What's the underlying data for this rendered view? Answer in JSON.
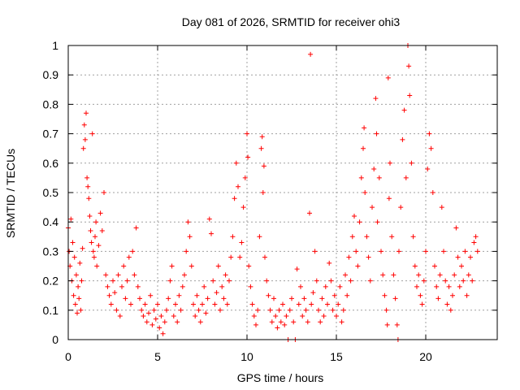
{
  "chart_data": {
    "type": "scatter",
    "title": "Day 081 of 2026, SRMTID for receiver ohi3",
    "xlabel": "GPS time / hours",
    "ylabel": "SRMTID / TECUs",
    "xlim": [
      0,
      24
    ],
    "ylim": [
      0,
      1
    ],
    "xticks": [
      0,
      5,
      10,
      15,
      20
    ],
    "xtick_labels": [
      "0",
      "5",
      "10",
      "15",
      "20"
    ],
    "yticks": [
      0,
      0.1,
      0.2,
      0.3,
      0.4,
      0.5,
      0.6,
      0.7,
      0.8,
      0.9,
      1
    ],
    "ytick_labels": [
      "0",
      "0.1",
      "0.2",
      "0.3",
      "0.4",
      "0.5",
      "0.6",
      "0.7",
      "0.8",
      "0.9",
      "1"
    ],
    "grid": true,
    "marker": "plus",
    "color": "#ff0000",
    "series": [
      {
        "name": "SRMTID",
        "points": [
          [
            0.0,
            0.38
          ],
          [
            0.05,
            0.3
          ],
          [
            0.1,
            0.25
          ],
          [
            0.15,
            0.41
          ],
          [
            0.2,
            0.2
          ],
          [
            0.25,
            0.33
          ],
          [
            0.3,
            0.15
          ],
          [
            0.35,
            0.28
          ],
          [
            0.4,
            0.12
          ],
          [
            0.45,
            0.22
          ],
          [
            0.5,
            0.09
          ],
          [
            0.55,
            0.18
          ],
          [
            0.6,
            0.14
          ],
          [
            0.65,
            0.26
          ],
          [
            0.7,
            0.1
          ],
          [
            0.75,
            0.2
          ],
          [
            0.8,
            0.31
          ],
          [
            0.85,
            0.65
          ],
          [
            0.9,
            0.73
          ],
          [
            0.95,
            0.68
          ],
          [
            1.0,
            0.77
          ],
          [
            1.05,
            0.55
          ],
          [
            1.1,
            0.52
          ],
          [
            1.15,
            0.48
          ],
          [
            1.2,
            0.42
          ],
          [
            1.25,
            0.37
          ],
          [
            1.3,
            0.33
          ],
          [
            1.35,
            0.7
          ],
          [
            1.4,
            0.3
          ],
          [
            1.45,
            0.28
          ],
          [
            1.5,
            0.35
          ],
          [
            1.55,
            0.4
          ],
          [
            1.6,
            0.25
          ],
          [
            1.7,
            0.32
          ],
          [
            1.8,
            0.43
          ],
          [
            1.9,
            0.37
          ],
          [
            2.0,
            0.5
          ],
          [
            2.1,
            0.22
          ],
          [
            2.2,
            0.18
          ],
          [
            2.3,
            0.15
          ],
          [
            2.4,
            0.12
          ],
          [
            2.5,
            0.2
          ],
          [
            2.6,
            0.16
          ],
          [
            2.7,
            0.1
          ],
          [
            2.8,
            0.22
          ],
          [
            2.9,
            0.08
          ],
          [
            3.0,
            0.18
          ],
          [
            3.1,
            0.25
          ],
          [
            3.2,
            0.14
          ],
          [
            3.3,
            0.2
          ],
          [
            3.4,
            0.28
          ],
          [
            3.5,
            0.12
          ],
          [
            3.6,
            0.3
          ],
          [
            3.7,
            0.22
          ],
          [
            3.8,
            0.38
          ],
          [
            3.9,
            0.18
          ],
          [
            4.0,
            0.14
          ],
          [
            4.1,
            0.1
          ],
          [
            4.2,
            0.08
          ],
          [
            4.3,
            0.12
          ],
          [
            4.4,
            0.06
          ],
          [
            4.5,
            0.09
          ],
          [
            4.6,
            0.15
          ],
          [
            4.7,
            0.05
          ],
          [
            4.8,
            0.1
          ],
          [
            4.9,
            0.07
          ],
          [
            5.0,
            0.12
          ],
          [
            5.1,
            0.04
          ],
          [
            5.2,
            0.08
          ],
          [
            5.3,
            0.02
          ],
          [
            5.4,
            0.06
          ],
          [
            5.5,
            0.1
          ],
          [
            5.6,
            0.14
          ],
          [
            5.7,
            0.2
          ],
          [
            5.8,
            0.25
          ],
          [
            5.9,
            0.08
          ],
          [
            6.0,
            0.12
          ],
          [
            6.1,
            0.06
          ],
          [
            6.2,
            0.15
          ],
          [
            6.3,
            0.1
          ],
          [
            6.4,
            0.18
          ],
          [
            6.5,
            0.22
          ],
          [
            6.6,
            0.3
          ],
          [
            6.7,
            0.4
          ],
          [
            6.8,
            0.35
          ],
          [
            6.9,
            0.25
          ],
          [
            7.0,
            0.12
          ],
          [
            7.1,
            0.08
          ],
          [
            7.2,
            0.15
          ],
          [
            7.3,
            0.1
          ],
          [
            7.4,
            0.06
          ],
          [
            7.5,
            0.12
          ],
          [
            7.6,
            0.18
          ],
          [
            7.7,
            0.09
          ],
          [
            7.8,
            0.14
          ],
          [
            7.9,
            0.41
          ],
          [
            8.0,
            0.36
          ],
          [
            8.1,
            0.2
          ],
          [
            8.2,
            0.12
          ],
          [
            8.3,
            0.16
          ],
          [
            8.4,
            0.25
          ],
          [
            8.5,
            0.1
          ],
          [
            8.6,
            0.18
          ],
          [
            8.7,
            0.14
          ],
          [
            8.8,
            0.22
          ],
          [
            8.9,
            0.12
          ],
          [
            9.0,
            0.2
          ],
          [
            9.1,
            0.28
          ],
          [
            9.2,
            0.35
          ],
          [
            9.3,
            0.48
          ],
          [
            9.4,
            0.6
          ],
          [
            9.5,
            0.52
          ],
          [
            9.6,
            0.28
          ],
          [
            9.7,
            0.33
          ],
          [
            9.8,
            0.45
          ],
          [
            9.9,
            0.55
          ],
          [
            10.0,
            0.7
          ],
          [
            10.05,
            0.62
          ],
          [
            10.1,
            0.25
          ],
          [
            10.2,
            0.18
          ],
          [
            10.3,
            0.12
          ],
          [
            10.4,
            0.08
          ],
          [
            10.5,
            0.05
          ],
          [
            10.6,
            0.1
          ],
          [
            10.7,
            0.35
          ],
          [
            10.8,
            0.65
          ],
          [
            10.85,
            0.69
          ],
          [
            10.9,
            0.5
          ],
          [
            10.95,
            0.59
          ],
          [
            11.0,
            0.28
          ],
          [
            11.1,
            0.2
          ],
          [
            11.2,
            0.15
          ],
          [
            11.3,
            0.1
          ],
          [
            11.4,
            0.06
          ],
          [
            11.5,
            0.14
          ],
          [
            11.6,
            0.08
          ],
          [
            11.7,
            0.04
          ],
          [
            11.8,
            0.1
          ],
          [
            11.9,
            0.06
          ],
          [
            12.0,
            0.12
          ],
          [
            12.1,
            0.05
          ],
          [
            12.2,
            0.08
          ],
          [
            12.3,
            0.0
          ],
          [
            12.4,
            0.1
          ],
          [
            12.5,
            0.14
          ],
          [
            12.6,
            0.06
          ],
          [
            12.7,
            0.0
          ],
          [
            12.8,
            0.24
          ],
          [
            12.9,
            0.12
          ],
          [
            13.0,
            0.18
          ],
          [
            13.1,
            0.08
          ],
          [
            13.2,
            0.14
          ],
          [
            13.3,
            0.1
          ],
          [
            13.4,
            0.06
          ],
          [
            13.5,
            0.43
          ],
          [
            13.55,
            0.97
          ],
          [
            13.6,
            0.12
          ],
          [
            13.7,
            0.16
          ],
          [
            13.8,
            0.3
          ],
          [
            13.9,
            0.2
          ],
          [
            14.0,
            0.1
          ],
          [
            14.1,
            0.06
          ],
          [
            14.2,
            0.14
          ],
          [
            14.3,
            0.08
          ],
          [
            14.4,
            0.18
          ],
          [
            14.5,
            0.12
          ],
          [
            14.6,
            0.26
          ],
          [
            14.7,
            0.2
          ],
          [
            14.8,
            0.1
          ],
          [
            14.9,
            0.15
          ],
          [
            15.0,
            0.08
          ],
          [
            15.1,
            0.12
          ],
          [
            15.2,
            0.18
          ],
          [
            15.3,
            0.06
          ],
          [
            15.4,
            0.1
          ],
          [
            15.5,
            0.22
          ],
          [
            15.6,
            0.15
          ],
          [
            15.7,
            0.28
          ],
          [
            15.8,
            0.2
          ],
          [
            15.9,
            0.35
          ],
          [
            16.0,
            0.42
          ],
          [
            16.1,
            0.3
          ],
          [
            16.2,
            0.25
          ],
          [
            16.3,
            0.4
          ],
          [
            16.4,
            0.55
          ],
          [
            16.5,
            0.65
          ],
          [
            16.55,
            0.72
          ],
          [
            16.6,
            0.5
          ],
          [
            16.7,
            0.35
          ],
          [
            16.8,
            0.28
          ],
          [
            16.9,
            0.2
          ],
          [
            17.0,
            0.45
          ],
          [
            17.1,
            0.58
          ],
          [
            17.2,
            0.82
          ],
          [
            17.25,
            0.7
          ],
          [
            17.3,
            0.4
          ],
          [
            17.4,
            0.55
          ],
          [
            17.5,
            0.3
          ],
          [
            17.6,
            0.22
          ],
          [
            17.7,
            0.15
          ],
          [
            17.8,
            0.1
          ],
          [
            17.85,
            0.05
          ],
          [
            17.9,
            0.89
          ],
          [
            17.95,
            0.48
          ],
          [
            18.0,
            0.6
          ],
          [
            18.1,
            0.35
          ],
          [
            18.2,
            0.22
          ],
          [
            18.3,
            0.14
          ],
          [
            18.4,
            0.05
          ],
          [
            18.45,
            0.0
          ],
          [
            18.5,
            0.3
          ],
          [
            18.6,
            0.45
          ],
          [
            18.7,
            0.68
          ],
          [
            18.8,
            0.78
          ],
          [
            18.9,
            0.55
          ],
          [
            19.0,
            1.0
          ],
          [
            19.05,
            0.93
          ],
          [
            19.1,
            0.83
          ],
          [
            19.2,
            0.6
          ],
          [
            19.3,
            0.35
          ],
          [
            19.4,
            0.25
          ],
          [
            19.5,
            0.18
          ],
          [
            19.6,
            0.22
          ],
          [
            19.7,
            0.15
          ],
          [
            19.8,
            0.12
          ],
          [
            19.9,
            0.2
          ],
          [
            20.0,
            0.3
          ],
          [
            20.1,
            0.58
          ],
          [
            20.2,
            0.7
          ],
          [
            20.3,
            0.65
          ],
          [
            20.4,
            0.5
          ],
          [
            20.5,
            0.25
          ],
          [
            20.6,
            0.18
          ],
          [
            20.7,
            0.14
          ],
          [
            20.8,
            0.22
          ],
          [
            20.9,
            0.45
          ],
          [
            21.0,
            0.3
          ],
          [
            21.1,
            0.2
          ],
          [
            21.2,
            0.12
          ],
          [
            21.3,
            0.18
          ],
          [
            21.4,
            0.1
          ],
          [
            21.5,
            0.15
          ],
          [
            21.6,
            0.22
          ],
          [
            21.7,
            0.38
          ],
          [
            21.8,
            0.28
          ],
          [
            21.9,
            0.18
          ],
          [
            22.0,
            0.25
          ],
          [
            22.1,
            0.2
          ],
          [
            22.2,
            0.3
          ],
          [
            22.3,
            0.15
          ],
          [
            22.4,
            0.22
          ],
          [
            22.5,
            0.28
          ],
          [
            22.6,
            0.2
          ],
          [
            22.7,
            0.33
          ],
          [
            22.8,
            0.35
          ],
          [
            22.9,
            0.3
          ]
        ]
      }
    ]
  }
}
